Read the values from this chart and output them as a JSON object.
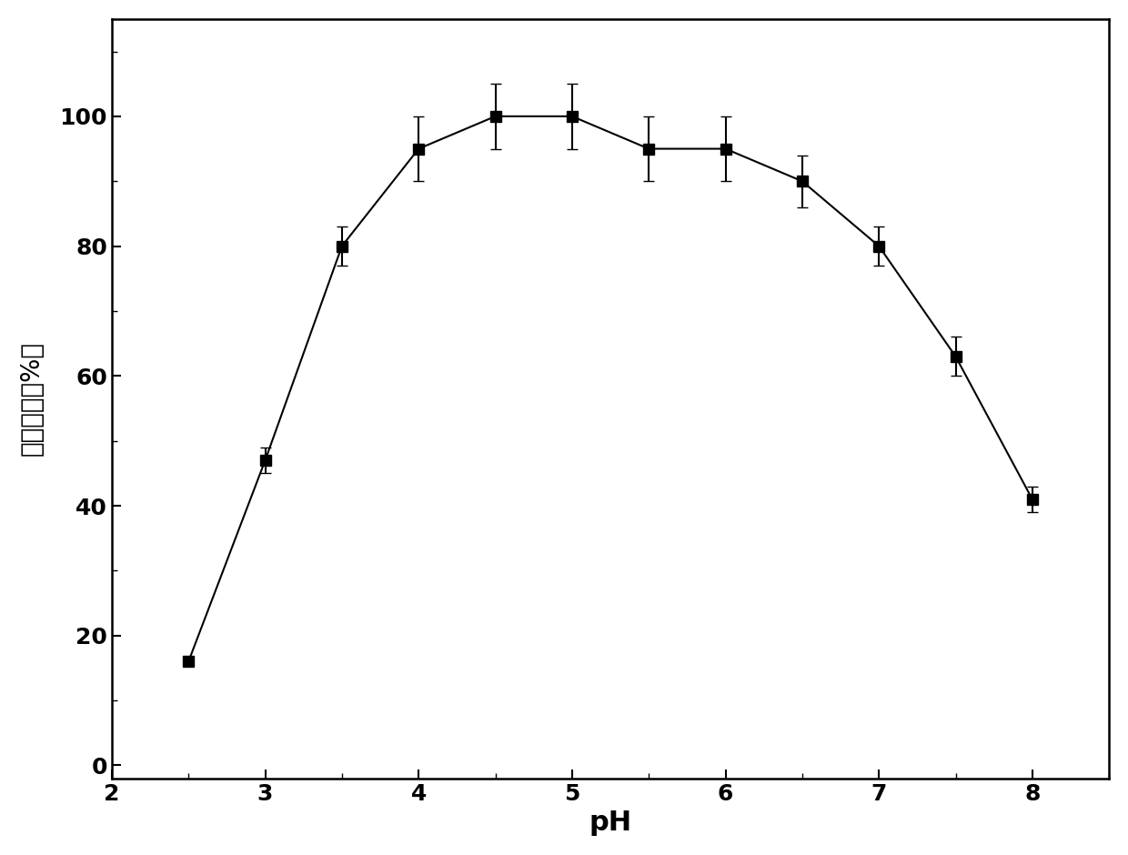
{
  "x": [
    2.5,
    3.0,
    3.5,
    4.0,
    4.5,
    5.0,
    5.5,
    6.0,
    6.5,
    7.0,
    7.5,
    8.0
  ],
  "y": [
    16,
    47,
    80,
    95,
    100,
    100,
    95,
    95,
    90,
    80,
    63,
    41
  ],
  "yerr": [
    0,
    2,
    3,
    5,
    5,
    5,
    5,
    5,
    4,
    3,
    3,
    2
  ],
  "xlabel": "pH",
  "ylabel": "相对酶活（%）",
  "xlim": [
    2.0,
    8.5
  ],
  "ylim": [
    -2,
    115
  ],
  "xticks": [
    2,
    3,
    4,
    5,
    6,
    7,
    8
  ],
  "yticks": [
    0,
    20,
    40,
    60,
    80,
    100
  ],
  "marker": "s",
  "marker_size": 9,
  "line_color": "black",
  "marker_color": "black",
  "marker_facecolor": "black",
  "capsize": 4,
  "linewidth": 1.5,
  "xlabel_fontsize": 22,
  "ylabel_fontsize": 20,
  "tick_fontsize": 18,
  "figure_facecolor": "white"
}
